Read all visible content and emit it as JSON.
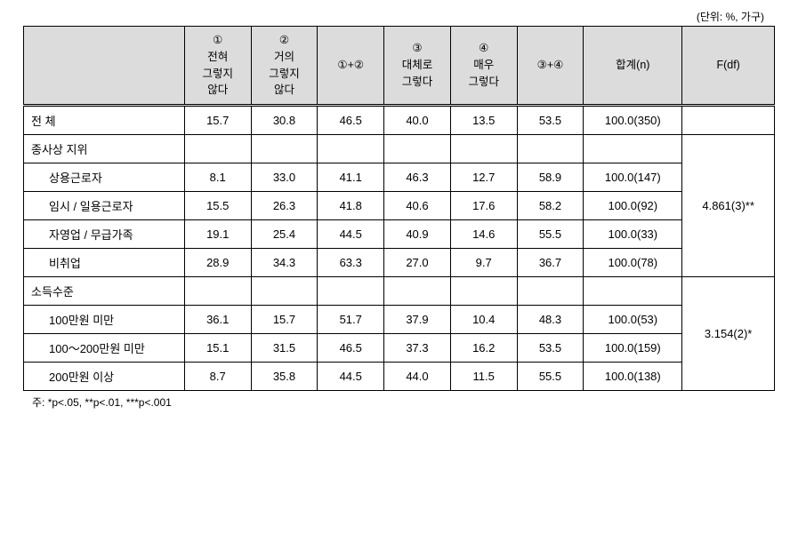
{
  "unit_label": "(단위: %, 가구)",
  "headers": {
    "c1": "①\n전혀\n그렇지\n않다",
    "c2": "②\n거의\n그렇지\n않다",
    "c12": "①+②",
    "c3": "③\n대체로\n그렇다",
    "c4": "④\n매우\n그렇다",
    "c34": "③+④",
    "total": "합계(n)",
    "f": "F(df)"
  },
  "rows": {
    "overall": {
      "label": "전 체",
      "v": [
        "15.7",
        "30.8",
        "46.5",
        "40.0",
        "13.5",
        "53.5",
        "100.0(350)",
        ""
      ]
    },
    "status_header": {
      "label": "종사상 지위"
    },
    "status_1": {
      "label": "상용근로자",
      "v": [
        "8.1",
        "33.0",
        "41.1",
        "46.3",
        "12.7",
        "58.9",
        "100.0(147)"
      ]
    },
    "status_2": {
      "label": "임시 / 일용근로자",
      "v": [
        "15.5",
        "26.3",
        "41.8",
        "40.6",
        "17.6",
        "58.2",
        "100.0(92)"
      ]
    },
    "status_3": {
      "label": "자영업 / 무급가족",
      "v": [
        "19.1",
        "25.4",
        "44.5",
        "40.9",
        "14.6",
        "55.5",
        "100.0(33)"
      ]
    },
    "status_4": {
      "label": "비취업",
      "v": [
        "28.9",
        "34.3",
        "63.3",
        "27.0",
        "9.7",
        "36.7",
        "100.0(78)"
      ]
    },
    "status_f": "4.861(3)**",
    "income_header": {
      "label": "소득수준"
    },
    "income_1": {
      "label": "100만원 미만",
      "v": [
        "36.1",
        "15.7",
        "51.7",
        "37.9",
        "10.4",
        "48.3",
        "100.0(53)"
      ]
    },
    "income_2": {
      "label": "100～200만원 미만",
      "v": [
        "15.1",
        "31.5",
        "46.5",
        "37.3",
        "16.2",
        "53.5",
        "100.0(159)"
      ]
    },
    "income_3": {
      "label": "200만원 이상",
      "v": [
        "8.7",
        "35.8",
        "44.5",
        "44.0",
        "11.5",
        "55.5",
        "100.0(138)"
      ]
    },
    "income_f": "3.154(2)*"
  },
  "footnote": "주: *p<.05, **p<.01, ***p<.001"
}
